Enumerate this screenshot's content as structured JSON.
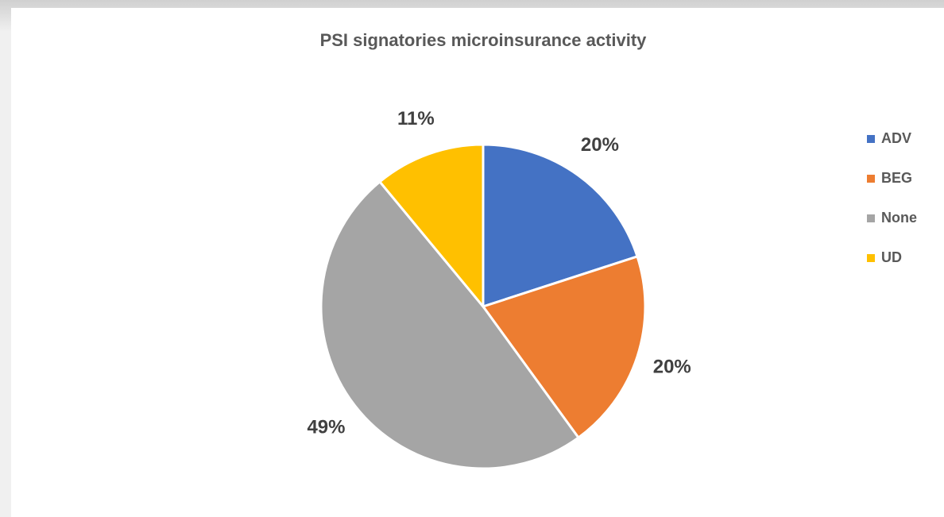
{
  "chart_data": {
    "type": "pie",
    "title": "PSI signatories microinsurance activity",
    "categories": [
      "ADV",
      "BEG",
      "None",
      "UD"
    ],
    "values": [
      20,
      20,
      49,
      11
    ],
    "value_labels": [
      "20%",
      "20%",
      "49%",
      "11%"
    ],
    "colors": [
      "#4472c4",
      "#ed7d31",
      "#a5a5a5",
      "#ffc000"
    ],
    "legend": "right"
  }
}
